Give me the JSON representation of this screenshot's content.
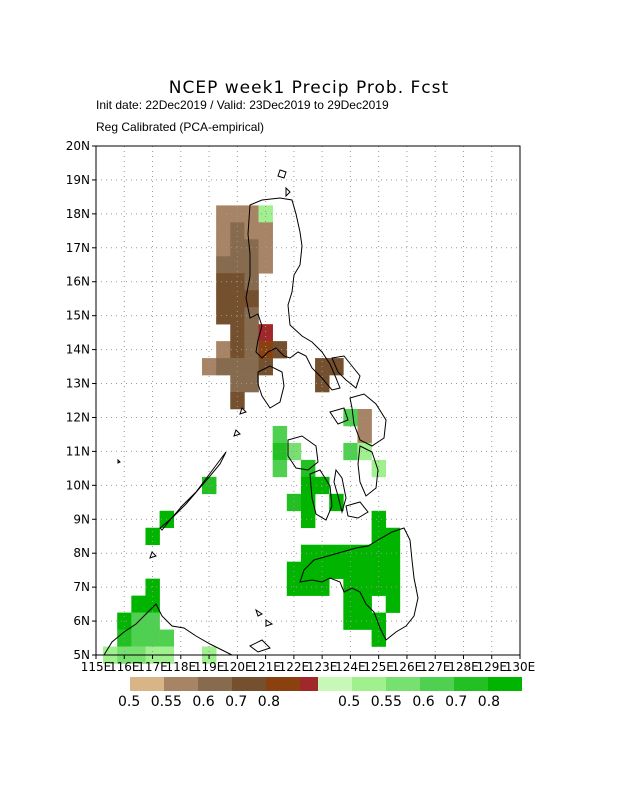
{
  "title": "NCEP week1 Precip Prob. Fcst",
  "subtitle_line1": "Init date: 22Dec2019 / Valid: 23Dec2019 to 29Dec2019",
  "subtitle_line2": "Reg Calibrated (PCA-empirical)",
  "lat_labels": [
    "5N",
    "6N",
    "7N",
    "8N",
    "9N",
    "10N",
    "11N",
    "12N",
    "13N",
    "14N",
    "15N",
    "16N",
    "17N",
    "18N",
    "19N",
    "20N"
  ],
  "lon_labels": [
    "115E",
    "116E",
    "117E",
    "118E",
    "119E",
    "120E",
    "121E",
    "122E",
    "123E",
    "124E",
    "125E",
    "126E",
    "127E",
    "128E",
    "129E",
    "130E"
  ],
  "map": {
    "lon_range": [
      115,
      130
    ],
    "lat_range": [
      5,
      20
    ],
    "grid": "dotted",
    "cell_deg": 0.5
  },
  "legend_dry": {
    "colors": [
      "#d8b487",
      "#a88467",
      "#866b4f",
      "#74502f",
      "#8a400f",
      "#a0282a"
    ],
    "labels": [
      "0.5",
      "0.55",
      "0.6",
      "0.7",
      "0.8"
    ]
  },
  "legend_wet": {
    "colors": [
      "#c8f8b8",
      "#a0f090",
      "#78e070",
      "#50d050",
      "#22c022",
      "#00b400"
    ],
    "labels": [
      "0.5",
      "0.55",
      "0.6",
      "0.7",
      "0.8"
    ]
  },
  "cells": [
    {
      "lon": 119.5,
      "lat": 18.0,
      "p": "d1"
    },
    {
      "lon": 120.0,
      "lat": 18.0,
      "p": "d1"
    },
    {
      "lon": 120.5,
      "lat": 18.0,
      "p": "d1"
    },
    {
      "lon": 121.0,
      "lat": 18.0,
      "p": "w1"
    },
    {
      "lon": 119.5,
      "lat": 17.5,
      "p": "d1"
    },
    {
      "lon": 120.0,
      "lat": 17.5,
      "p": "d2"
    },
    {
      "lon": 120.5,
      "lat": 17.5,
      "p": "d1"
    },
    {
      "lon": 121.0,
      "lat": 17.5,
      "p": "d1"
    },
    {
      "lon": 119.5,
      "lat": 17.0,
      "p": "d1"
    },
    {
      "lon": 120.0,
      "lat": 17.0,
      "p": "d2"
    },
    {
      "lon": 120.5,
      "lat": 17.0,
      "p": "d2"
    },
    {
      "lon": 121.0,
      "lat": 17.0,
      "p": "d1"
    },
    {
      "lon": 119.5,
      "lat": 16.5,
      "p": "d2"
    },
    {
      "lon": 120.0,
      "lat": 16.5,
      "p": "d2"
    },
    {
      "lon": 120.5,
      "lat": 16.5,
      "p": "d2"
    },
    {
      "lon": 121.0,
      "lat": 16.5,
      "p": "d1"
    },
    {
      "lon": 119.5,
      "lat": 16.0,
      "p": "d3"
    },
    {
      "lon": 120.0,
      "lat": 16.0,
      "p": "d3"
    },
    {
      "lon": 120.5,
      "lat": 16.0,
      "p": "d2"
    },
    {
      "lon": 119.5,
      "lat": 15.5,
      "p": "d3"
    },
    {
      "lon": 120.0,
      "lat": 15.5,
      "p": "d3"
    },
    {
      "lon": 120.5,
      "lat": 15.5,
      "p": "d3"
    },
    {
      "lon": 119.5,
      "lat": 15.0,
      "p": "d3"
    },
    {
      "lon": 120.0,
      "lat": 15.0,
      "p": "d3"
    },
    {
      "lon": 120.5,
      "lat": 15.0,
      "p": "d2"
    },
    {
      "lon": 120.0,
      "lat": 14.5,
      "p": "d3"
    },
    {
      "lon": 120.5,
      "lat": 14.5,
      "p": "d2"
    },
    {
      "lon": 121.0,
      "lat": 14.5,
      "p": "d5"
    },
    {
      "lon": 119.5,
      "lat": 14.0,
      "p": "d1"
    },
    {
      "lon": 120.0,
      "lat": 14.0,
      "p": "d3"
    },
    {
      "lon": 120.5,
      "lat": 14.0,
      "p": "d2"
    },
    {
      "lon": 121.0,
      "lat": 14.0,
      "p": "d4"
    },
    {
      "lon": 121.5,
      "lat": 14.0,
      "p": "d3"
    },
    {
      "lon": 119.0,
      "lat": 13.5,
      "p": "d1"
    },
    {
      "lon": 119.5,
      "lat": 13.5,
      "p": "d2"
    },
    {
      "lon": 120.0,
      "lat": 13.5,
      "p": "d2"
    },
    {
      "lon": 120.5,
      "lat": 13.5,
      "p": "d2"
    },
    {
      "lon": 121.0,
      "lat": 13.5,
      "p": "d3"
    },
    {
      "lon": 123.0,
      "lat": 13.5,
      "p": "d3"
    },
    {
      "lon": 123.5,
      "lat": 13.5,
      "p": "d3"
    },
    {
      "lon": 120.0,
      "lat": 13.0,
      "p": "d2"
    },
    {
      "lon": 120.5,
      "lat": 13.0,
      "p": "d2"
    },
    {
      "lon": 123.0,
      "lat": 13.0,
      "p": "d3"
    },
    {
      "lon": 120.0,
      "lat": 12.5,
      "p": "d3"
    },
    {
      "lon": 124.5,
      "lat": 12.0,
      "p": "d1"
    },
    {
      "lon": 124.0,
      "lat": 12.0,
      "p": "w3"
    },
    {
      "lon": 124.5,
      "lat": 11.5,
      "p": "d1"
    },
    {
      "lon": 121.5,
      "lat": 11.5,
      "p": "w3"
    },
    {
      "lon": 121.5,
      "lat": 11.0,
      "p": "w4"
    },
    {
      "lon": 122.0,
      "lat": 11.0,
      "p": "w2"
    },
    {
      "lon": 121.5,
      "lat": 10.5,
      "p": "w3"
    },
    {
      "lon": 124.0,
      "lat": 11.0,
      "p": "w3"
    },
    {
      "lon": 124.5,
      "lat": 11.0,
      "p": "w1"
    },
    {
      "lon": 125.0,
      "lat": 10.5,
      "p": "w1"
    },
    {
      "lon": 122.5,
      "lat": 10.5,
      "p": "w4"
    },
    {
      "lon": 122.5,
      "lat": 10.0,
      "p": "w5"
    },
    {
      "lon": 123.0,
      "lat": 10.0,
      "p": "w5"
    },
    {
      "lon": 119.0,
      "lat": 10.0,
      "p": "w4"
    },
    {
      "lon": 122.0,
      "lat": 9.5,
      "p": "w4"
    },
    {
      "lon": 122.5,
      "lat": 9.5,
      "p": "w5"
    },
    {
      "lon": 123.5,
      "lat": 9.5,
      "p": "w5"
    },
    {
      "lon": 122.5,
      "lat": 9.0,
      "p": "w5"
    },
    {
      "lon": 125.0,
      "lat": 9.0,
      "p": "w5"
    },
    {
      "lon": 117.5,
      "lat": 9.0,
      "p": "w5"
    },
    {
      "lon": 117.0,
      "lat": 8.5,
      "p": "w5"
    },
    {
      "lon": 125.0,
      "lat": 8.5,
      "p": "w5"
    },
    {
      "lon": 125.5,
      "lat": 8.5,
      "p": "w5"
    },
    {
      "lon": 122.5,
      "lat": 8.0,
      "p": "w5"
    },
    {
      "lon": 123.0,
      "lat": 8.0,
      "p": "w5"
    },
    {
      "lon": 123.5,
      "lat": 8.0,
      "p": "w5"
    },
    {
      "lon": 124.0,
      "lat": 8.0,
      "p": "w5"
    },
    {
      "lon": 124.5,
      "lat": 8.0,
      "p": "w5"
    },
    {
      "lon": 125.0,
      "lat": 8.0,
      "p": "w5"
    },
    {
      "lon": 125.5,
      "lat": 8.0,
      "p": "w5"
    },
    {
      "lon": 122.5,
      "lat": 7.5,
      "p": "w5"
    },
    {
      "lon": 123.0,
      "lat": 7.5,
      "p": "w5"
    },
    {
      "lon": 123.5,
      "lat": 7.5,
      "p": "w5"
    },
    {
      "lon": 124.0,
      "lat": 7.5,
      "p": "w5"
    },
    {
      "lon": 124.5,
      "lat": 7.5,
      "p": "w5"
    },
    {
      "lon": 125.0,
      "lat": 7.5,
      "p": "w5"
    },
    {
      "lon": 125.5,
      "lat": 7.5,
      "p": "w5"
    },
    {
      "lon": 122.0,
      "lat": 7.5,
      "p": "w5"
    },
    {
      "lon": 122.0,
      "lat": 7.0,
      "p": "w5"
    },
    {
      "lon": 122.5,
      "lat": 7.0,
      "p": "w5"
    },
    {
      "lon": 123.0,
      "lat": 7.0,
      "p": "w5"
    },
    {
      "lon": 124.0,
      "lat": 7.0,
      "p": "w5"
    },
    {
      "lon": 124.5,
      "lat": 7.0,
      "p": "w5"
    },
    {
      "lon": 125.0,
      "lat": 7.0,
      "p": "w5"
    },
    {
      "lon": 125.5,
      "lat": 7.0,
      "p": "w5"
    },
    {
      "lon": 124.0,
      "lat": 6.5,
      "p": "w5"
    },
    {
      "lon": 124.5,
      "lat": 6.5,
      "p": "w5"
    },
    {
      "lon": 125.5,
      "lat": 6.5,
      "p": "w5"
    },
    {
      "lon": 124.0,
      "lat": 6.0,
      "p": "w5"
    },
    {
      "lon": 124.5,
      "lat": 6.0,
      "p": "w5"
    },
    {
      "lon": 125.0,
      "lat": 6.0,
      "p": "w5"
    },
    {
      "lon": 125.0,
      "lat": 5.5,
      "p": "w5"
    },
    {
      "lon": 117.0,
      "lat": 7.0,
      "p": "w5"
    },
    {
      "lon": 116.5,
      "lat": 6.5,
      "p": "w5"
    },
    {
      "lon": 117.0,
      "lat": 6.5,
      "p": "w5"
    },
    {
      "lon": 116.0,
      "lat": 6.0,
      "p": "w5"
    },
    {
      "lon": 116.5,
      "lat": 6.0,
      "p": "w3"
    },
    {
      "lon": 117.0,
      "lat": 6.0,
      "p": "w3"
    },
    {
      "lon": 116.0,
      "lat": 5.5,
      "p": "w4"
    },
    {
      "lon": 116.5,
      "lat": 5.5,
      "p": "w3"
    },
    {
      "lon": 117.0,
      "lat": 5.5,
      "p": "w3"
    },
    {
      "lon": 117.5,
      "lat": 5.5,
      "p": "w3"
    },
    {
      "lon": 115.5,
      "lat": 5.0,
      "p": "w1"
    },
    {
      "lon": 116.0,
      "lat": 5.0,
      "p": "w2"
    },
    {
      "lon": 116.5,
      "lat": 5.0,
      "p": "w2"
    },
    {
      "lon": 117.0,
      "lat": 5.0,
      "p": "w1"
    },
    {
      "lon": 117.5,
      "lat": 5.0,
      "p": "w1"
    },
    {
      "lon": 119.0,
      "lat": 5.0,
      "p": "w1"
    }
  ]
}
